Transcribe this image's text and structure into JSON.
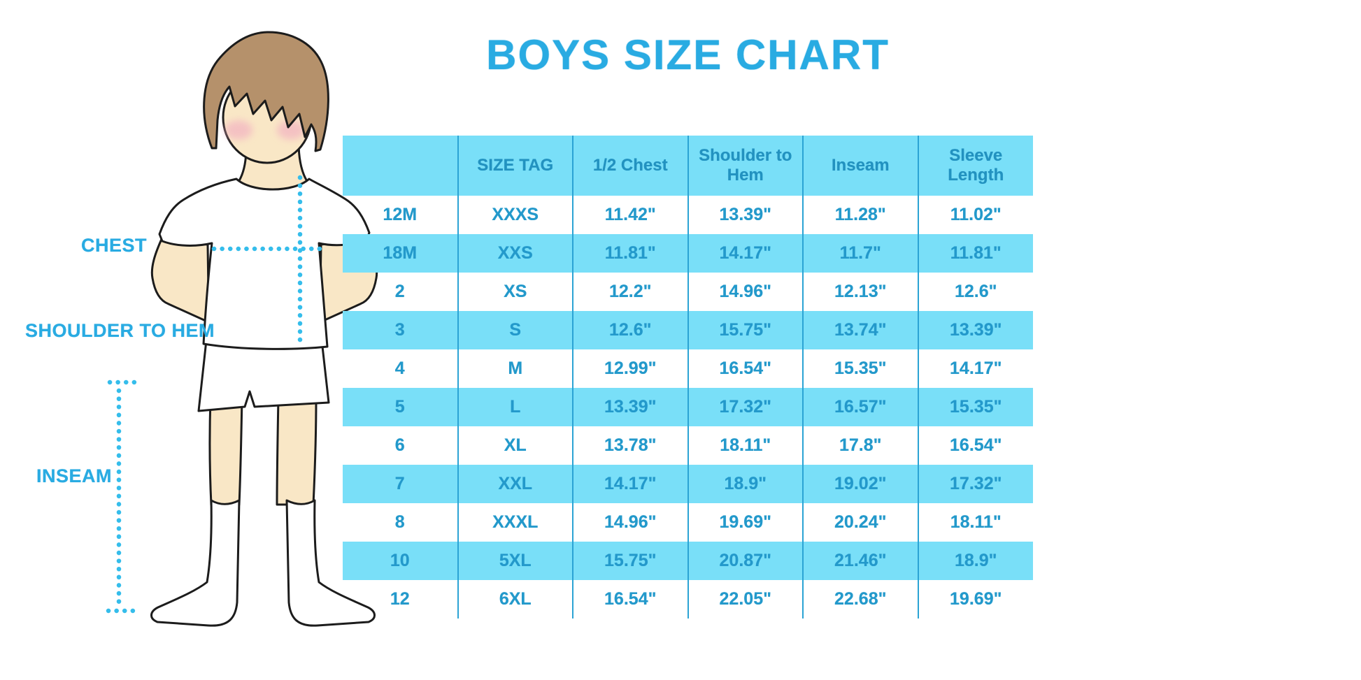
{
  "colors": {
    "accent": "#29ABE2",
    "band": "#79DFF8",
    "line": "#2BA3D4",
    "header_text": "#2292C0",
    "cell_text": "#2399CB",
    "skin": "#F9E7C6",
    "hair": "#B5916B",
    "blush": "#F2AEC1",
    "outline": "#1C1C1C",
    "dots": "#35BDEB"
  },
  "diagram": {
    "labels": {
      "chest": "CHEST",
      "shoulder_to_hem": "SHOULDER TO HEM",
      "inseam": "INSEAM"
    }
  },
  "chart_data": {
    "type": "table",
    "title": "BOYS SIZE CHART",
    "columns": [
      "",
      "SIZE TAG",
      "1/2 Chest",
      "Shoulder to Hem",
      "Inseam",
      "Sleeve Length"
    ],
    "rows": [
      [
        "12M",
        "XXXS",
        "11.42\"",
        "13.39\"",
        "11.28\"",
        "11.02\""
      ],
      [
        "18M",
        "XXS",
        "11.81\"",
        "14.17\"",
        "11.7\"",
        "11.81\""
      ],
      [
        "2",
        "XS",
        "12.2\"",
        "14.96\"",
        "12.13\"",
        "12.6\""
      ],
      [
        "3",
        "S",
        "12.6\"",
        "15.75\"",
        "13.74\"",
        "13.39\""
      ],
      [
        "4",
        "M",
        "12.99\"",
        "16.54\"",
        "15.35\"",
        "14.17\""
      ],
      [
        "5",
        "L",
        "13.39\"",
        "17.32\"",
        "16.57\"",
        "15.35\""
      ],
      [
        "6",
        "XL",
        "13.78\"",
        "18.11\"",
        "17.8\"",
        "16.54\""
      ],
      [
        "7",
        "XXL",
        "14.17\"",
        "18.9\"",
        "19.02\"",
        "17.32\""
      ],
      [
        "8",
        "XXXL",
        "14.96\"",
        "19.69\"",
        "20.24\"",
        "18.11\""
      ],
      [
        "10",
        "5XL",
        "15.75\"",
        "20.87\"",
        "21.46\"",
        "18.9\""
      ],
      [
        "12",
        "6XL",
        "16.54\"",
        "22.05\"",
        "22.68\"",
        "19.69\""
      ]
    ],
    "layout": {
      "row_striping": "white/cyan alternating",
      "grid": "vertical lines only",
      "legend": "none"
    }
  }
}
